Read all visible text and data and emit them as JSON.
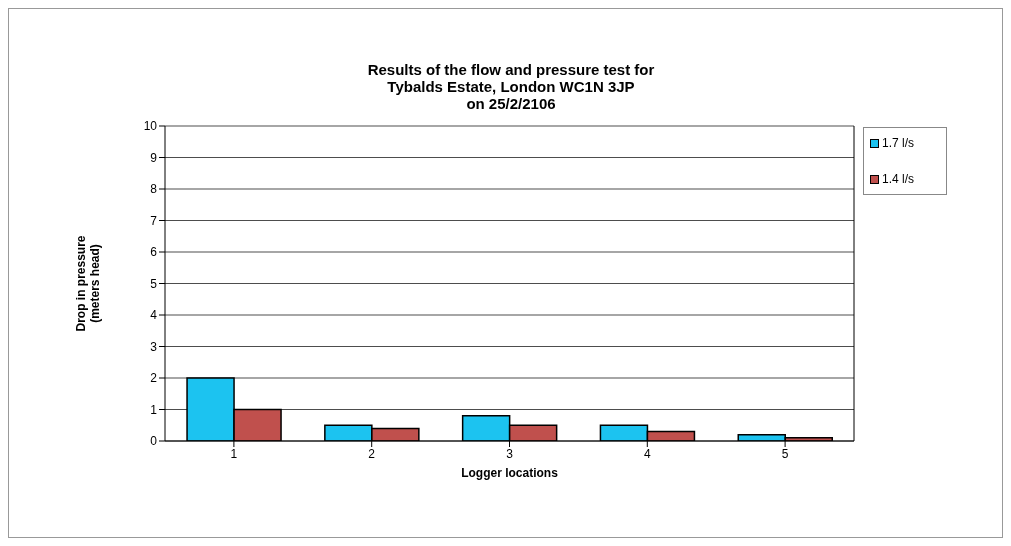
{
  "chart_data": {
    "type": "bar",
    "title": "Results of the flow and pressure test for\nTybalds Estate, London WC1N 3JP\non 25/2/2106",
    "xlabel": "Logger  locations",
    "ylabel": "Drop in pressure\n(meters head)",
    "categories": [
      "1",
      "2",
      "3",
      "4",
      "5"
    ],
    "series": [
      {
        "name": "1.7 l/s",
        "color": "#1cc3f0",
        "values": [
          2,
          0.5,
          0.8,
          0.5,
          0.2
        ]
      },
      {
        "name": "1.4 l/s",
        "color": "#c0504d",
        "values": [
          1,
          0.4,
          0.5,
          0.3,
          0.1
        ]
      }
    ],
    "ylim": [
      0,
      10
    ],
    "yticks": [
      0,
      1,
      2,
      3,
      4,
      5,
      6,
      7,
      8,
      9,
      10
    ],
    "grid": "y",
    "legend": "top right"
  }
}
